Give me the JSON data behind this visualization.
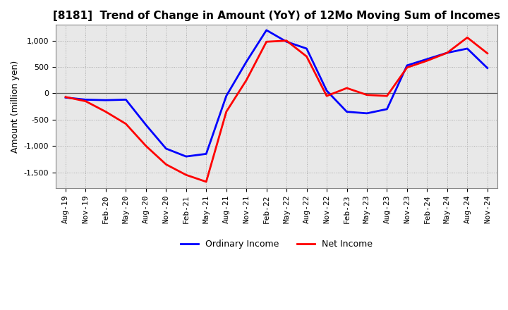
{
  "title": "[8181]  Trend of Change in Amount (YoY) of 12Mo Moving Sum of Incomes",
  "ylabel": "Amount (million yen)",
  "x_labels": [
    "Aug-19",
    "Nov-19",
    "Feb-20",
    "May-20",
    "Aug-20",
    "Nov-20",
    "Feb-21",
    "May-21",
    "Aug-21",
    "Nov-21",
    "Feb-22",
    "May-22",
    "Aug-22",
    "Nov-22",
    "Feb-23",
    "May-23",
    "Aug-23",
    "Nov-23",
    "Feb-24",
    "May-24",
    "Aug-24",
    "Nov-24"
  ],
  "ordinary_income": [
    -80,
    -120,
    -130,
    -120,
    -600,
    -1050,
    -1200,
    -1150,
    -50,
    600,
    1200,
    980,
    850,
    50,
    -350,
    -380,
    -300,
    530,
    650,
    770,
    850,
    480
  ],
  "net_income": [
    -70,
    -150,
    -350,
    -580,
    -1000,
    -1350,
    -1550,
    -1680,
    -350,
    250,
    980,
    1000,
    700,
    -50,
    100,
    -30,
    -50,
    490,
    620,
    770,
    1060,
    760
  ],
  "ordinary_color": "#0000ff",
  "net_color": "#ff0000",
  "ylim": [
    -1800,
    1300
  ],
  "yticks": [
    -1500,
    -1000,
    -500,
    0,
    500,
    1000
  ],
  "plot_bg_color": "#e8e8e8",
  "background_color": "#ffffff",
  "grid_color": "#aaaaaa",
  "line_width": 2.0,
  "title_fontsize": 11,
  "label_fontsize": 9,
  "tick_fontsize": 8
}
